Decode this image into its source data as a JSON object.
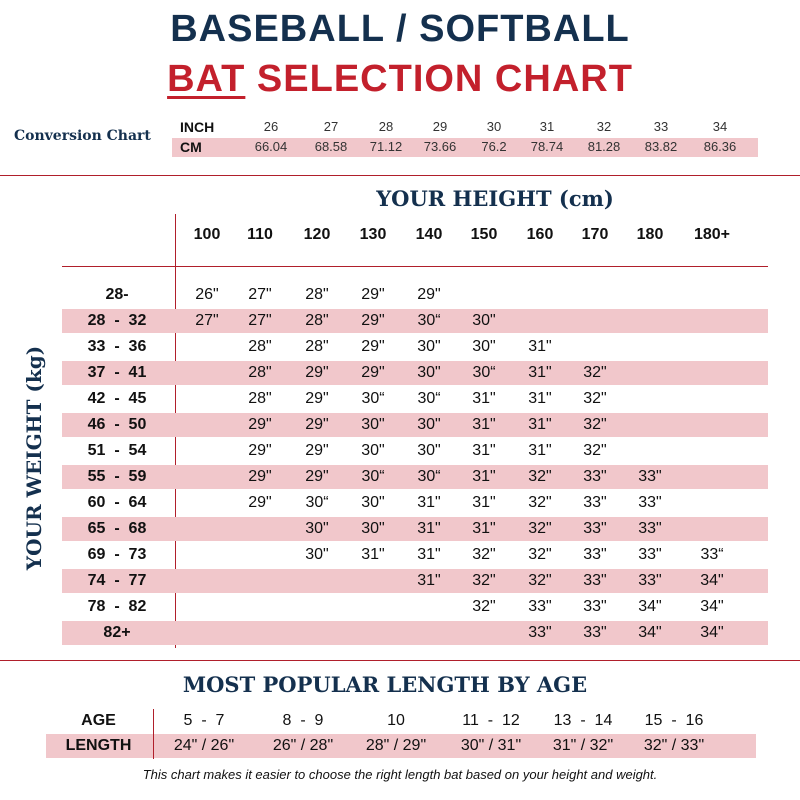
{
  "title": {
    "line1": "BASEBALL / SOFTBALL",
    "line2_accent": "BAT",
    "line2_rest": " SELECTION CHART"
  },
  "conversion": {
    "label": "Conversion Chart",
    "inch_label": "INCH",
    "cm_label": "CM",
    "inches": [
      "26",
      "27",
      "28",
      "29",
      "30",
      "31",
      "32",
      "33",
      "34"
    ],
    "cm": [
      "66.04",
      "68.58",
      "71.12",
      "73.66",
      "76.2",
      "78.74",
      "81.28",
      "83.82",
      "86.36"
    ]
  },
  "height_title": "YOUR HEIGHT (cm)",
  "weight_title": "YOUR WEIGHT (kg)",
  "heights": [
    "100",
    "110",
    "120",
    "130",
    "140",
    "150",
    "160",
    "170",
    "180",
    "180+"
  ],
  "rows": [
    {
      "weight": "28-",
      "cells": [
        "26\"",
        "27\"",
        "28\"",
        "29\"",
        "29\"",
        "",
        "",
        "",
        "",
        ""
      ]
    },
    {
      "weight": "28  -  32",
      "cells": [
        "27\"",
        "27\"",
        "28\"",
        "29\"",
        "30“",
        "30\"",
        "",
        "",
        "",
        ""
      ]
    },
    {
      "weight": "33  -  36",
      "cells": [
        "",
        "28\"",
        "28\"",
        "29\"",
        "30\"",
        "30\"",
        "31\"",
        "",
        "",
        ""
      ]
    },
    {
      "weight": "37  -  41",
      "cells": [
        "",
        "28\"",
        "29\"",
        "29\"",
        "30\"",
        "30“",
        "31\"",
        "32\"",
        "",
        ""
      ]
    },
    {
      "weight": "42  -  45",
      "cells": [
        "",
        "28\"",
        "29\"",
        "30“",
        "30“",
        "31\"",
        "31\"",
        "32\"",
        "",
        ""
      ]
    },
    {
      "weight": "46  -  50",
      "cells": [
        "",
        "29\"",
        "29\"",
        "30\"",
        "30\"",
        "31\"",
        "31\"",
        "32\"",
        "",
        ""
      ]
    },
    {
      "weight": "51  -  54",
      "cells": [
        "",
        "29\"",
        "29\"",
        "30\"",
        "30\"",
        "31\"",
        "31\"",
        "32\"",
        "",
        ""
      ]
    },
    {
      "weight": "55  -  59",
      "cells": [
        "",
        "29\"",
        "29\"",
        "30“",
        "30“",
        "31\"",
        "32\"",
        "33\"",
        "33\"",
        ""
      ]
    },
    {
      "weight": "60  -  64",
      "cells": [
        "",
        "29\"",
        "30“",
        "30\"",
        "31\"",
        "31\"",
        "32\"",
        "33\"",
        "33\"",
        ""
      ]
    },
    {
      "weight": "65  -  68",
      "cells": [
        "",
        "",
        "30\"",
        "30\"",
        "31\"",
        "31\"",
        "32\"",
        "33\"",
        "33\"",
        ""
      ]
    },
    {
      "weight": "69  -  73",
      "cells": [
        "",
        "",
        "30\"",
        "31\"",
        "31\"",
        "32\"",
        "32\"",
        "33\"",
        "33\"",
        "33“"
      ]
    },
    {
      "weight": "74  -  77",
      "cells": [
        "",
        "",
        "",
        "",
        "31\"",
        "32\"",
        "32\"",
        "33\"",
        "33\"",
        "34\""
      ]
    },
    {
      "weight": "78  -  82",
      "cells": [
        "",
        "",
        "",
        "",
        "",
        "32\"",
        "33\"",
        "33\"",
        "34\"",
        "34\""
      ]
    },
    {
      "weight": "82+",
      "cells": [
        "",
        "",
        "",
        "",
        "",
        "",
        "33\"",
        "33\"",
        "34\"",
        "34\""
      ]
    }
  ],
  "age_section": {
    "title": "MOST POPULAR LENGTH BY AGE",
    "age_label": "AGE",
    "length_label": "LENGTH",
    "ages": [
      "5  -  7",
      "8  -  9",
      "10",
      "11  -  12",
      "13  -  14",
      "15  -  16"
    ],
    "lengths": [
      "24\" / 26\"",
      "26\" / 28\"",
      "28\" / 29\"",
      "30\" / 31\"",
      "31\" / 32\"",
      "32\" / 33\""
    ]
  },
  "footnote": "This chart makes it easier to choose the right length bat based on your height and weight.",
  "colors": {
    "navy": "#14304e",
    "red": "#c3202c",
    "pink_band": "#f1c7cb",
    "rule": "#b01f2b"
  }
}
